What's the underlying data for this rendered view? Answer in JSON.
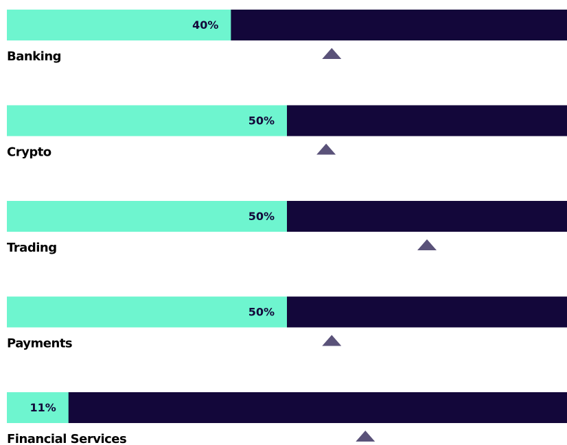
{
  "chart_data": {
    "type": "bar",
    "categories": [
      "Banking",
      "Crypto",
      "Trading",
      "Payments",
      "Financial Services"
    ],
    "values": [
      40,
      50,
      50,
      50,
      11
    ],
    "value_labels": [
      "40%",
      "50%",
      "50%",
      "50%",
      "11%"
    ],
    "markers": [
      58,
      57,
      75,
      58,
      64
    ],
    "xlim": [
      0,
      100
    ],
    "color": "#6ef5cf",
    "track_color": "#13073a",
    "marker_color": "#5a5279"
  }
}
